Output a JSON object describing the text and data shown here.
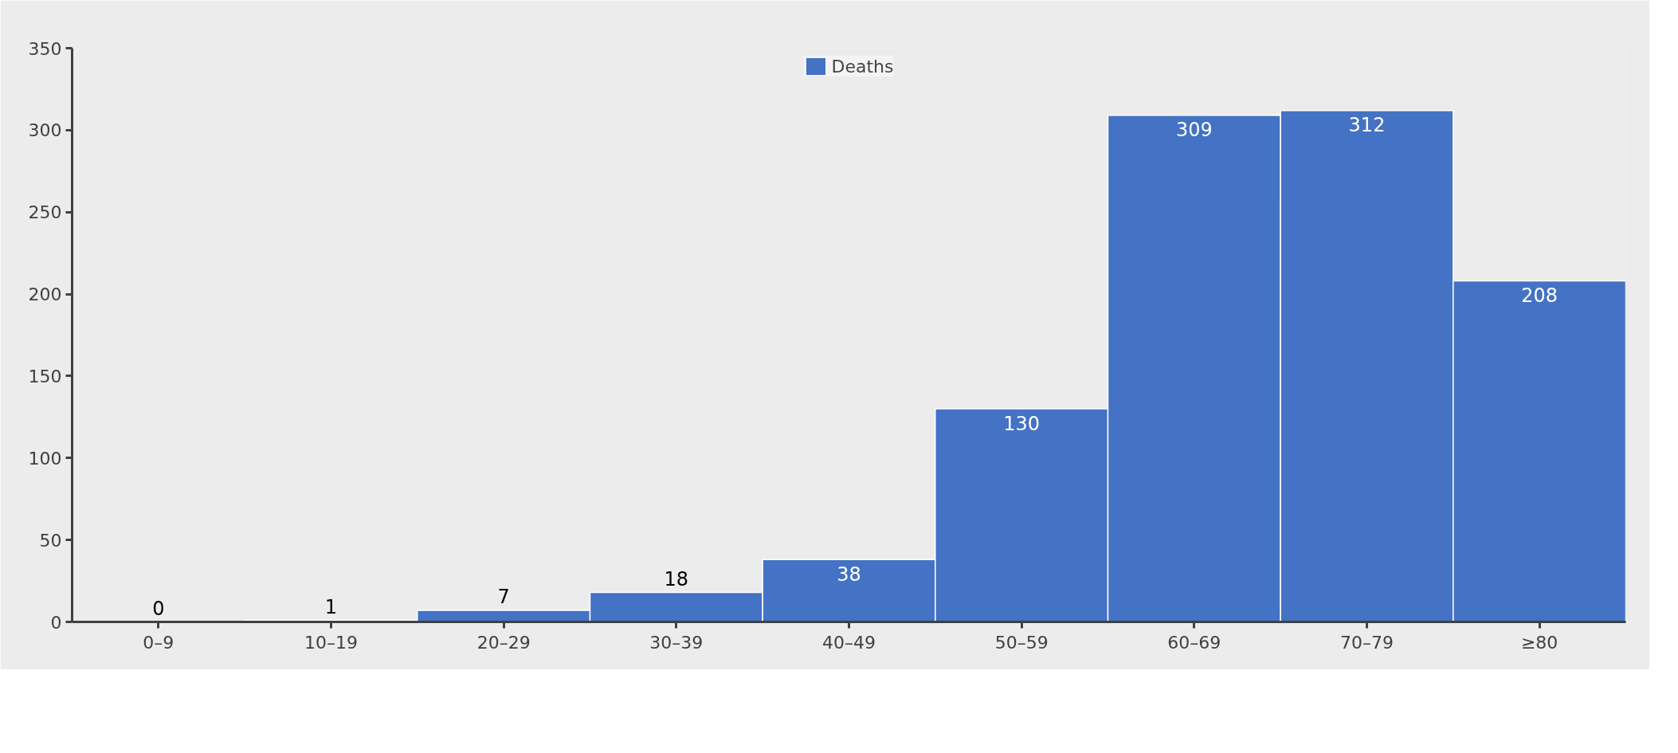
{
  "chart_data": {
    "type": "bar",
    "categories": [
      "0–9",
      "10–19",
      "20–29",
      "30–39",
      "40–49",
      "50–59",
      "60–69",
      "70–79",
      "≥80"
    ],
    "series": [
      {
        "name": "Deaths",
        "color": "#4472c4",
        "values": [
          0,
          1,
          7,
          18,
          38,
          130,
          309,
          312,
          208
        ]
      }
    ],
    "ylim": [
      0,
      350
    ],
    "yticks": [
      0,
      50,
      100,
      150,
      200,
      250,
      300,
      350
    ],
    "data_labels": true,
    "legend": "top",
    "grid": false
  }
}
